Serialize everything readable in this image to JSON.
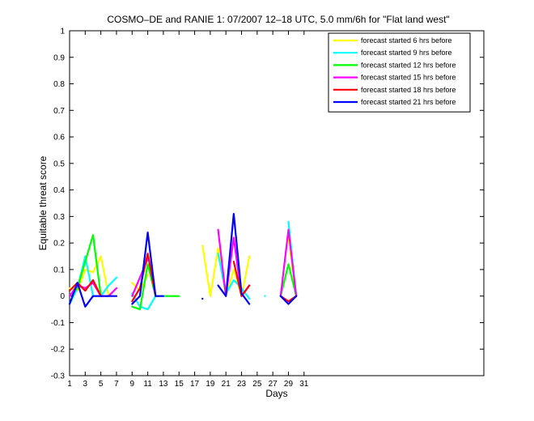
{
  "chart_data": {
    "type": "line",
    "title": "COSMO–DE and RANIE 1: 07/2007 12–18 UTC, 5.0 mm/6h for \"Flat land west\"",
    "xlabel": "Days",
    "ylabel": "Equitable threat score",
    "xlim": [
      1,
      54
    ],
    "ylim": [
      -0.3,
      1
    ],
    "xticks": [
      1,
      3,
      5,
      7,
      9,
      11,
      13,
      15,
      17,
      19,
      21,
      23,
      25,
      27,
      29,
      31
    ],
    "yticks": [
      -0.3,
      -0.2,
      -0.1,
      0,
      0.1,
      0.2,
      0.3,
      0.4,
      0.5,
      0.6,
      0.7,
      0.8,
      0.9,
      1
    ],
    "legend_position": "top-right",
    "grid": false,
    "series": [
      {
        "name": "forecast started 6 hrs before",
        "color": "#ffff00",
        "values": [
          0.03,
          0.02,
          0.1,
          0.09,
          0.15,
          0.0,
          null,
          null,
          0.05,
          0.02,
          0.08,
          null,
          null,
          null,
          null,
          null,
          null,
          0.19,
          0.0,
          0.18,
          0.0,
          0.1,
          0.0,
          0.15,
          null,
          null,
          null,
          null,
          0.22,
          0.0,
          null
        ]
      },
      {
        "name": "forecast started 9 hrs before",
        "color": "#00ffff",
        "values": [
          -0.03,
          0.03,
          0.15,
          0.0,
          0.0,
          0.04,
          0.07,
          null,
          0.01,
          -0.04,
          -0.05,
          0.0,
          null,
          null,
          null,
          null,
          null,
          null,
          null,
          0.16,
          0.01,
          0.06,
          0.03,
          -0.01,
          null,
          0.0,
          null,
          null,
          0.28,
          0.0,
          null
        ]
      },
      {
        "name": "forecast started 12 hrs before",
        "color": "#00ff00",
        "values": [
          0.0,
          0.03,
          0.13,
          0.23,
          0.0,
          0.0,
          null,
          null,
          -0.04,
          -0.05,
          0.12,
          0.0,
          0.0,
          0.0,
          0.0,
          null,
          null,
          null,
          null,
          null,
          null,
          null,
          null,
          null,
          null,
          null,
          null,
          0.0,
          0.12,
          0.0,
          null
        ]
      },
      {
        "name": "forecast started 15 hrs before",
        "color": "#ff00ff",
        "values": [
          0.0,
          0.04,
          0.03,
          0.05,
          0.0,
          0.0,
          0.03,
          null,
          0.0,
          0.07,
          0.14,
          null,
          null,
          null,
          null,
          null,
          null,
          null,
          null,
          0.25,
          0.0,
          0.22,
          0.0,
          0.04,
          null,
          null,
          null,
          0.0,
          0.25,
          0.0,
          null
        ]
      },
      {
        "name": "forecast started 18 hrs before",
        "color": "#ff0000",
        "values": [
          0.02,
          0.05,
          0.02,
          0.06,
          0.0,
          null,
          null,
          null,
          -0.02,
          0.03,
          0.16,
          0.0,
          null,
          null,
          null,
          null,
          null,
          null,
          null,
          null,
          null,
          0.13,
          0.0,
          0.04,
          null,
          null,
          null,
          0.0,
          -0.02,
          0.0,
          null
        ]
      },
      {
        "name": "forecast started 21 hrs before",
        "color": "#0000ff",
        "values": [
          -0.03,
          0.05,
          -0.04,
          0.0,
          0.0,
          0.0,
          0.0,
          null,
          -0.03,
          0.0,
          0.24,
          0.0,
          0.0,
          null,
          null,
          null,
          null,
          -0.01,
          null,
          0.04,
          0.0,
          0.31,
          0.01,
          -0.03,
          null,
          null,
          null,
          0.0,
          -0.03,
          0.0,
          null
        ]
      }
    ]
  }
}
